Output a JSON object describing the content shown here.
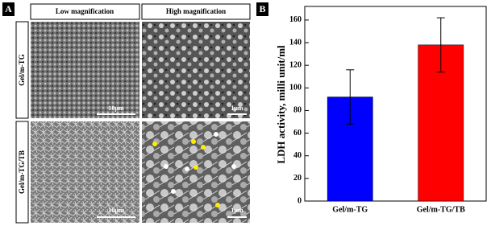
{
  "panel_a": {
    "label": "A",
    "columns": [
      "Low magnification",
      "High  magnification"
    ],
    "rows": [
      "Gel/m-TG",
      "Gel/m-TG/TB"
    ],
    "scale_bars": [
      "10μm",
      "1μm",
      "10μm",
      "1μm"
    ]
  },
  "chart_data": {
    "type": "bar",
    "panel_label": "B",
    "y_label": "LDH activity, milli unit/ml",
    "categories": [
      "Gel/m-TG",
      "Gel/m-TG/TB"
    ],
    "values": [
      92,
      138
    ],
    "errors": [
      24,
      24
    ],
    "colors": [
      "#0000ff",
      "#ff0000"
    ],
    "ylim": [
      0,
      172
    ],
    "yticks": [
      0,
      20,
      40,
      60,
      80,
      100,
      120,
      140,
      160
    ]
  }
}
